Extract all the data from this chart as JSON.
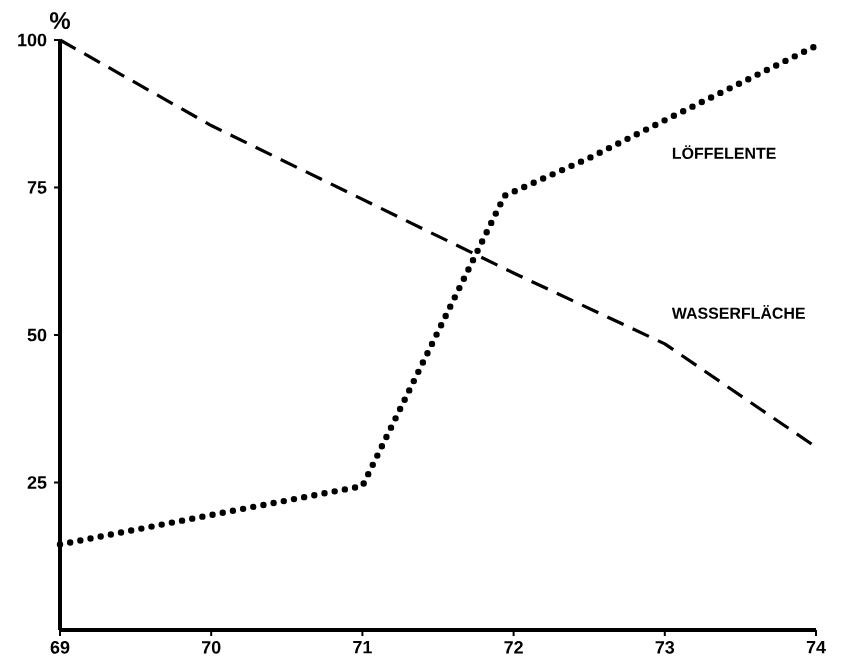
{
  "chart_data": {
    "type": "line",
    "ylabel": "%",
    "xlim": [
      69,
      74
    ],
    "ylim": [
      0,
      100
    ],
    "xticks": [
      69,
      70,
      71,
      72,
      73,
      74
    ],
    "yticks": [
      25,
      50,
      75,
      100
    ],
    "grid": false,
    "legend": false,
    "series": [
      {
        "name": "LÖFFELENTE",
        "color": "#000000",
        "line_style": "dotted",
        "x": [
          69,
          70,
          71,
          71.94,
          72.5,
          73,
          74
        ],
        "values": [
          14.5,
          19.5,
          24.4,
          73.6,
          80,
          86.4,
          99
        ]
      },
      {
        "name": "WASSERFLÄCHE",
        "color": "#000000",
        "line_style": "dashed",
        "x": [
          69,
          70,
          71,
          72,
          73,
          74
        ],
        "values": [
          100,
          85.5,
          73,
          60.5,
          48.5,
          31
        ]
      }
    ]
  }
}
